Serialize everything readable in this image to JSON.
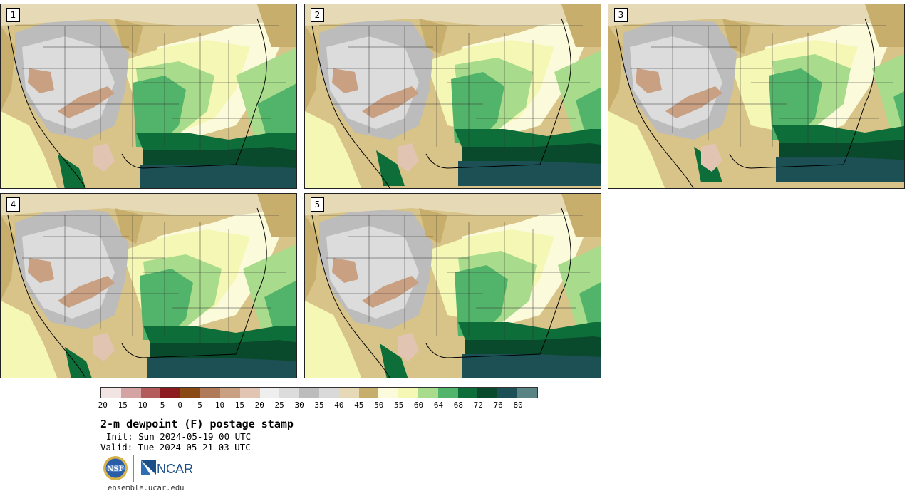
{
  "panels": [
    {
      "label": "1",
      "pattern": 0
    },
    {
      "label": "2",
      "pattern": 1
    },
    {
      "label": "3",
      "pattern": 2
    },
    {
      "label": "4",
      "pattern": 3
    },
    {
      "label": "5",
      "pattern": 4
    }
  ],
  "colorbar": {
    "colors": [
      "#f3e4e4",
      "#d4a4a4",
      "#b45c5c",
      "#8c1a1e",
      "#8a4a14",
      "#b07a58",
      "#c9a082",
      "#e2c4b2",
      "#eeeeee",
      "#dcdcdc",
      "#bcbcbc",
      "#d9d9d9",
      "#e6d9b6",
      "#c8ae6c",
      "#fbfbdc",
      "#f5f8b4",
      "#a8db8c",
      "#52b46a",
      "#0e6e3a",
      "#0a4a2c",
      "#1c5054",
      "#5a8484"
    ],
    "ticks": [
      "−20",
      "−15",
      "−10",
      "−5",
      "0",
      "5",
      "10",
      "15",
      "20",
      "25",
      "30",
      "35",
      "40",
      "45",
      "50",
      "55",
      "60",
      "64",
      "68",
      "72",
      "76",
      "80"
    ]
  },
  "title": "2-m dewpoint (F) postage stamp",
  "init": "Init: Sun 2024-05-19 00 UTC",
  "valid": "Valid: Tue 2024-05-21 03 UTC",
  "logos": {
    "ncar_text": "NCAR",
    "nsf_text": "NSF"
  },
  "website": "ensemble.ucar.edu"
}
